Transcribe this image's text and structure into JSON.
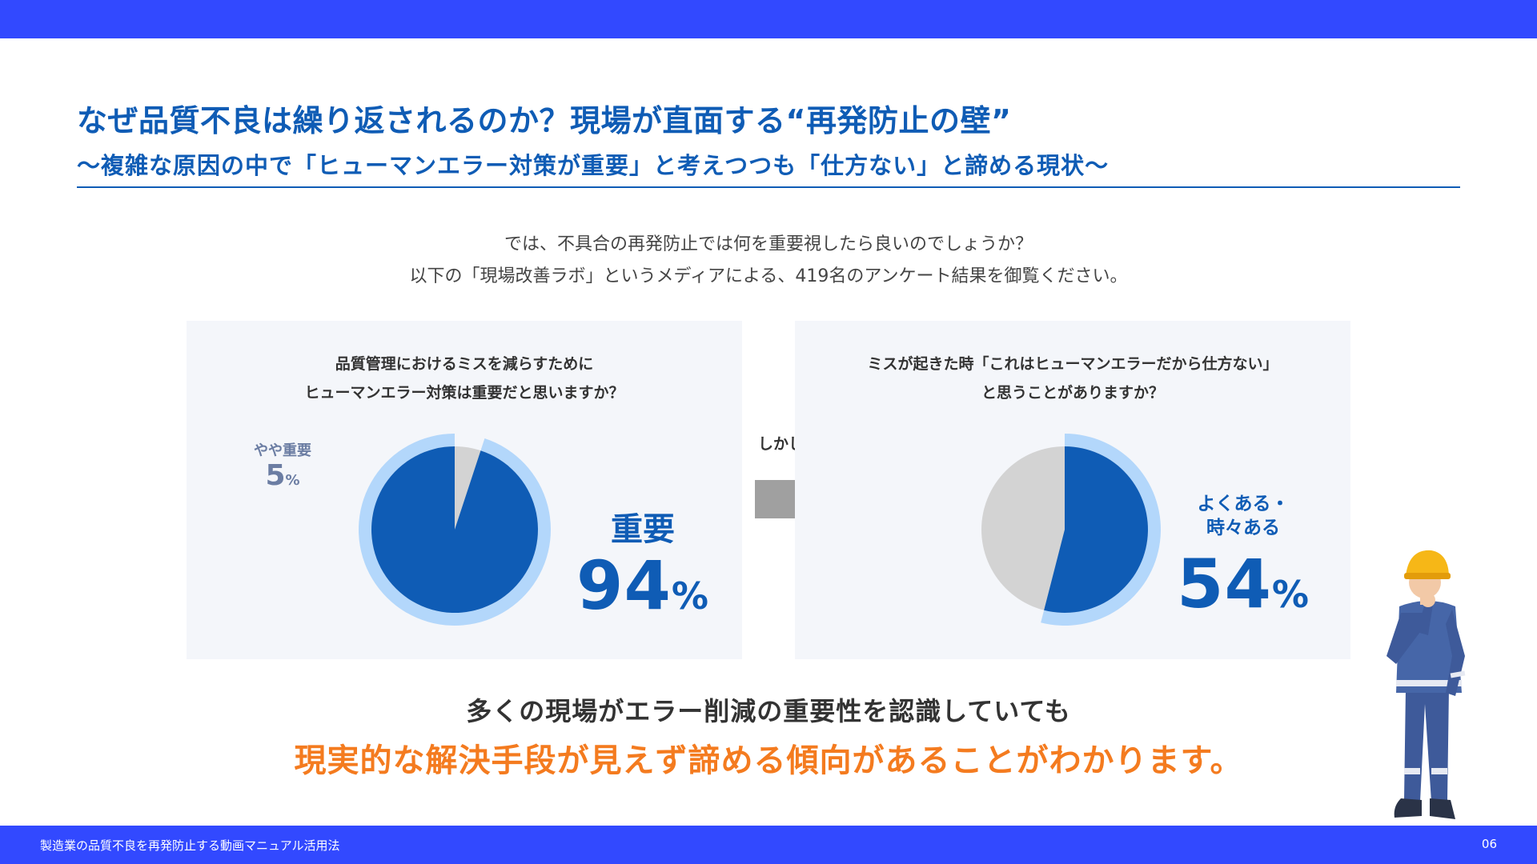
{
  "header": {
    "title": "なぜ品質不良は繰り返されるのか？現場が直面する“再発防止の壁”",
    "subtitle": "〜複雑な原因の中で「ヒューマンエラー対策が重要」と考えつつも「仕方ない」と諦める現状〜"
  },
  "intro": {
    "line1": "では、不具合の再発防止では何を重要視したら良いのでしょうか？",
    "line2": "以下の「現場改善ラボ」というメディアによる、419名のアンケート結果を御覧ください。"
  },
  "left_panel": {
    "question_line1": "品質管理におけるミスを減らすために",
    "question_line2": "ヒューマンエラー対策は重要だと思いますか？",
    "minor_label": "やや重要",
    "minor_value": "5",
    "minor_unit": "%",
    "major_label": "重要",
    "major_value": "94",
    "major_unit": "%"
  },
  "transition": {
    "label": "しかし…"
  },
  "right_panel": {
    "question_line1": "ミスが起きた時「これはヒューマンエラーだから仕方ない」",
    "question_line2": "と思うことがありますか？",
    "major_label_line1": "よくある・",
    "major_label_line2": "時々ある",
    "major_value": "54",
    "major_unit": "%"
  },
  "conclusion": {
    "line1": "多くの現場がエラー削減の重要性を認識していても",
    "line2": "現実的な解決手段が見えず諦める傾向があることがわかります。"
  },
  "footer": {
    "text": "製造業の品質不良を再発防止する動画マニュアル活用法",
    "page": "06"
  },
  "chart_data": [
    {
      "type": "pie",
      "categories": [
        "重要",
        "やや重要"
      ],
      "values": [
        94,
        5
      ],
      "colors": [
        "#0f5cb5",
        "#d3d3d3"
      ]
    },
    {
      "type": "pie",
      "categories": [
        "よくある・時々ある",
        ""
      ],
      "values": [
        54,
        46
      ],
      "colors": [
        "#0f5cb5",
        "#d3d3d3"
      ]
    }
  ],
  "colors": {
    "bar": "#3249ff",
    "accent_blue": "#0f5cb5",
    "ring_light_blue": "#b3d7fb",
    "pie_gray": "#d3d3d3",
    "orange": "#f47b1f",
    "panel_bg": "#f4f6fa"
  }
}
